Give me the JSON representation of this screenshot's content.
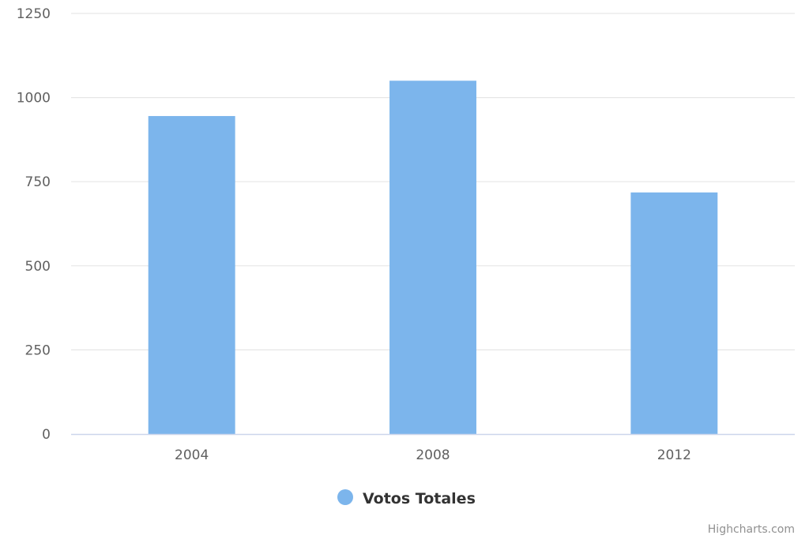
{
  "chart_data": {
    "type": "bar",
    "categories": [
      "2004",
      "2008",
      "2012"
    ],
    "series": [
      {
        "name": "Votos Totales",
        "values": [
          945,
          1050,
          718
        ],
        "color": "#7cb5ec"
      }
    ],
    "ylim": [
      0,
      1250
    ],
    "yticks": [
      "0",
      "250",
      "500",
      "750",
      "1000",
      "1250"
    ],
    "grid": true,
    "legend_position": "bottom-center"
  },
  "credits": "Highcharts.com",
  "colors": {
    "grid": "#e6e6e6",
    "axis": "#ccd6eb",
    "text": "#606060"
  }
}
